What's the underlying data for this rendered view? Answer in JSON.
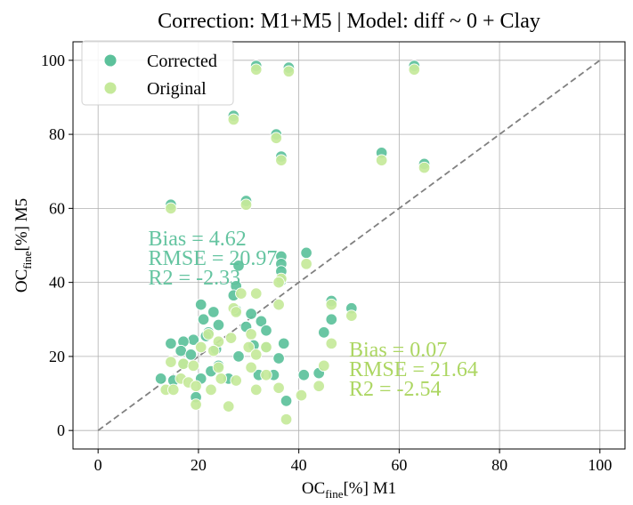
{
  "chart_data": {
    "type": "scatter",
    "title": "Correction: M1+M5 | Model: diff ~ 0 + Clay",
    "xlabel": {
      "pre": "OC",
      "sub": "fine",
      "post": "[%] M1"
    },
    "ylabel": {
      "pre": "OC",
      "sub": "fine",
      "post": "[%] M5"
    },
    "xlim": [
      -5,
      105
    ],
    "ylim": [
      -5,
      105
    ],
    "xticks": [
      0,
      20,
      40,
      60,
      80,
      100
    ],
    "yticks": [
      0,
      20,
      40,
      60,
      80,
      100
    ],
    "grid": true,
    "legend_placement": "top-left",
    "identity_line": {
      "from": [
        0,
        0
      ],
      "to": [
        100,
        100
      ],
      "style": "dashed",
      "color": "#808080"
    },
    "series": [
      {
        "name": "Corrected",
        "color": "#5cc19b",
        "points": [
          [
            14.5,
            61
          ],
          [
            27,
            85
          ],
          [
            31.5,
            98.5
          ],
          [
            38,
            98
          ],
          [
            35.5,
            80
          ],
          [
            36.5,
            74
          ],
          [
            29.5,
            62
          ],
          [
            56.5,
            75
          ],
          [
            63,
            98.5
          ],
          [
            65,
            72
          ],
          [
            41.5,
            48
          ],
          [
            36.5,
            47
          ],
          [
            28,
            44.5
          ],
          [
            36.5,
            45
          ],
          [
            36.5,
            43
          ],
          [
            36.5,
            40.5
          ],
          [
            27.5,
            39
          ],
          [
            27,
            36.5
          ],
          [
            20.5,
            34
          ],
          [
            23,
            32
          ],
          [
            30.5,
            31.5
          ],
          [
            27.5,
            32.5
          ],
          [
            21,
            30
          ],
          [
            32.5,
            29.5
          ],
          [
            29.5,
            28
          ],
          [
            24,
            28.5
          ],
          [
            33.5,
            27
          ],
          [
            22,
            26.5
          ],
          [
            21.5,
            25.5
          ],
          [
            19,
            24.5
          ],
          [
            17,
            24
          ],
          [
            14.5,
            23.5
          ],
          [
            23.5,
            22
          ],
          [
            31,
            23
          ],
          [
            33.5,
            22.5
          ],
          [
            37,
            23.5
          ],
          [
            16.5,
            21.5
          ],
          [
            18.5,
            20.5
          ],
          [
            28,
            20
          ],
          [
            36,
            19.5
          ],
          [
            17,
            18
          ],
          [
            24,
            17.5
          ],
          [
            22.5,
            16
          ],
          [
            32,
            15
          ],
          [
            35,
            15
          ],
          [
            41,
            15
          ],
          [
            44,
            15.5
          ],
          [
            12.5,
            14
          ],
          [
            15,
            13.5
          ],
          [
            20.5,
            14
          ],
          [
            26,
            14
          ],
          [
            19.5,
            9
          ],
          [
            37.5,
            8
          ],
          [
            46.5,
            35
          ],
          [
            46.5,
            30
          ],
          [
            50.5,
            33
          ],
          [
            45,
            26.5
          ]
        ]
      },
      {
        "name": "Original",
        "color": "#c5e99a",
        "points": [
          [
            14.5,
            60
          ],
          [
            27,
            84
          ],
          [
            31.5,
            97.5
          ],
          [
            38,
            97
          ],
          [
            35.5,
            79
          ],
          [
            36.5,
            73
          ],
          [
            29.5,
            61
          ],
          [
            56.5,
            73
          ],
          [
            63,
            97.5
          ],
          [
            65,
            71
          ],
          [
            41.5,
            45
          ],
          [
            36.5,
            41
          ],
          [
            28.5,
            37
          ],
          [
            36,
            40
          ],
          [
            36,
            34
          ],
          [
            27,
            33
          ],
          [
            27.5,
            32
          ],
          [
            31.5,
            37
          ],
          [
            22,
            26
          ],
          [
            30.5,
            26
          ],
          [
            24,
            24
          ],
          [
            20.5,
            22.5
          ],
          [
            26.5,
            25
          ],
          [
            23,
            21.5
          ],
          [
            30,
            22.5
          ],
          [
            33.5,
            22.5
          ],
          [
            31.5,
            20.5
          ],
          [
            14.5,
            18.5
          ],
          [
            17,
            18
          ],
          [
            19,
            17.5
          ],
          [
            24,
            17
          ],
          [
            30.5,
            17
          ],
          [
            33.5,
            15
          ],
          [
            16.5,
            14
          ],
          [
            18,
            13
          ],
          [
            24.5,
            14
          ],
          [
            27.5,
            13.5
          ],
          [
            36,
            11.5
          ],
          [
            13.5,
            11
          ],
          [
            15,
            11
          ],
          [
            19.5,
            12
          ],
          [
            22.5,
            11
          ],
          [
            31.5,
            11
          ],
          [
            40.5,
            9.5
          ],
          [
            44,
            12
          ],
          [
            45,
            17.5
          ],
          [
            19.5,
            7
          ],
          [
            26,
            6.5
          ],
          [
            37.5,
            3
          ],
          [
            46.5,
            34
          ],
          [
            46.5,
            23.5
          ],
          [
            50.5,
            31
          ]
        ]
      }
    ],
    "annotations": [
      {
        "series": "Corrected",
        "color": "#5cc19b",
        "at": [
          10,
          50
        ],
        "lines": [
          "Bias = 4.62",
          "RMSE = 20.97",
          "R2 = -2.33"
        ]
      },
      {
        "series": "Original",
        "color": "#a8d45a",
        "at": [
          50,
          20
        ],
        "lines": [
          "Bias = 0.07",
          "RMSE = 21.64",
          "R2 = -2.54"
        ]
      }
    ]
  }
}
